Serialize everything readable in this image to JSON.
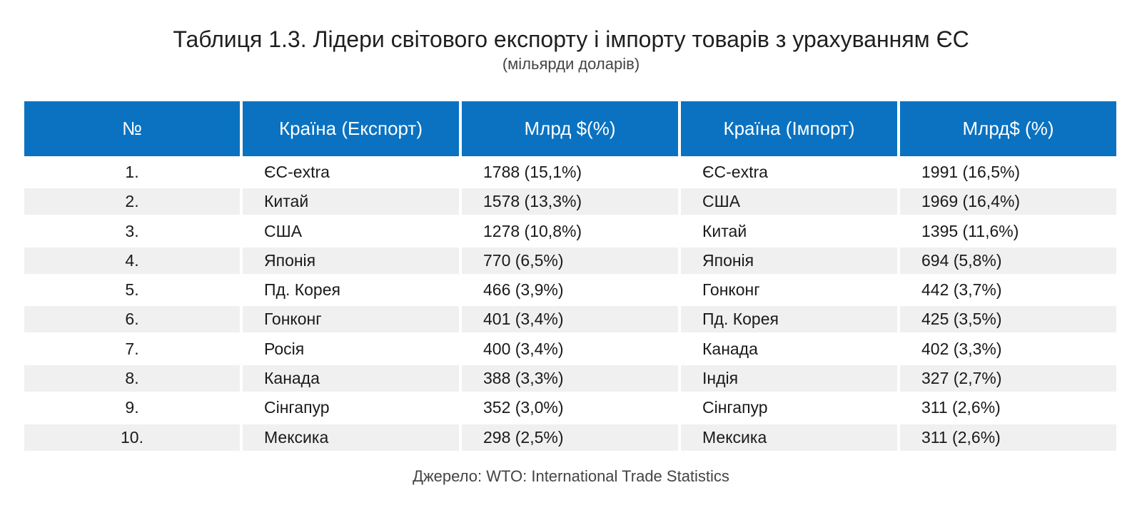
{
  "title": "Таблиця 1.3. Лідери світового експорту і імпорту товарів з урахуванням ЄС",
  "subtitle": "(мільярди доларів)",
  "table": {
    "headers": [
      "№",
      "Країна (Експорт)",
      "Млрд $(%)",
      "Країна (Імпорт)",
      "Млрд$ (%)"
    ],
    "rows": [
      [
        "1.",
        "ЄС-extra",
        "1788 (15,1%)",
        "ЄС-extra",
        "1991 (16,5%)"
      ],
      [
        "2.",
        "Китай",
        "1578 (13,3%)",
        "США",
        "1969 (16,4%)"
      ],
      [
        "3.",
        "США",
        "1278 (10,8%)",
        "Китай",
        "1395 (11,6%)"
      ],
      [
        "4.",
        "Японія",
        "770 (6,5%)",
        "Японія",
        "694 (5,8%)"
      ],
      [
        "5.",
        "Пд. Корея",
        "466 (3,9%)",
        "Гонконг",
        "442 (3,7%)"
      ],
      [
        "6.",
        "Гонконг",
        "401 (3,4%)",
        "Пд. Корея",
        "425 (3,5%)"
      ],
      [
        "7.",
        "Росія",
        "400 (3,4%)",
        "Канада",
        "402 (3,3%)"
      ],
      [
        "8.",
        "Канада",
        "388 (3,3%)",
        "Індія",
        "327 (2,7%)"
      ],
      [
        "9.",
        "Сінгапур",
        "352 (3,0%)",
        "Сінгапур",
        "311 (2,6%)"
      ],
      [
        "10.",
        "Мексика",
        "298 (2,5%)",
        "Мексика",
        "311 (2,6%)"
      ]
    ]
  },
  "source": "Джерело: WTO: International Trade Statistics",
  "colors": {
    "header_bg": "#0a72c1",
    "header_text": "#ffffff",
    "stripe_bg": "#f0f0f0"
  }
}
